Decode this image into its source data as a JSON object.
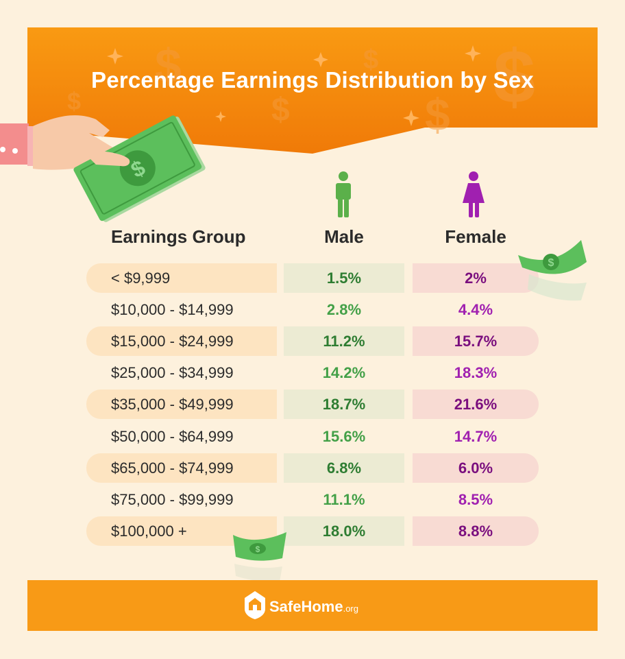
{
  "title": "Percentage Earnings Distribution by Sex",
  "columns": {
    "group": "Earnings Group",
    "male": "Male",
    "female": "Female"
  },
  "colors": {
    "male_text": "#43a047",
    "male_text_bold": "#2e7d32",
    "female_text": "#a020b0",
    "female_text_bold": "#7a0e7e",
    "male_bg": "#ecebd3",
    "female_bg": "#f8dbd3",
    "group_bg": "#fde4c1",
    "banner": "#f58d0f",
    "footer": "#f89a16"
  },
  "icons": {
    "male": "male-person-icon",
    "female": "female-person-icon",
    "logo": "house-shield-icon"
  },
  "brand": {
    "name": "SafeHome",
    "suffix": ".org"
  },
  "chart_data": {
    "type": "table",
    "title": "Percentage Earnings Distribution by Sex",
    "columns": [
      "Earnings Group",
      "Male",
      "Female"
    ],
    "categories": [
      "< $9,999",
      "$10,000 - $14,999",
      "$15,000 - $24,999",
      "$25,000 - $34,999",
      "$35,000 - $49,999",
      "$50,000 - $64,999",
      "$65,000 - $74,999",
      "$75,000 - $99,999",
      "$100,000 +"
    ],
    "series": [
      {
        "name": "Male",
        "values": [
          1.5,
          2.8,
          11.2,
          14.2,
          18.7,
          15.6,
          6.8,
          11.1,
          18.0
        ],
        "labels": [
          "1.5%",
          "2.8%",
          "11.2%",
          "14.2%",
          "18.7%",
          "15.6%",
          "6.8%",
          "11.1%",
          "18.0%"
        ]
      },
      {
        "name": "Female",
        "values": [
          2,
          4.4,
          15.7,
          18.3,
          21.6,
          14.7,
          6.0,
          8.5,
          8.8
        ],
        "labels": [
          "2%",
          "4.4%",
          "15.7%",
          "18.3%",
          "21.6%",
          "14.7%",
          "6.0%",
          "8.5%",
          "8.8%"
        ]
      }
    ]
  }
}
